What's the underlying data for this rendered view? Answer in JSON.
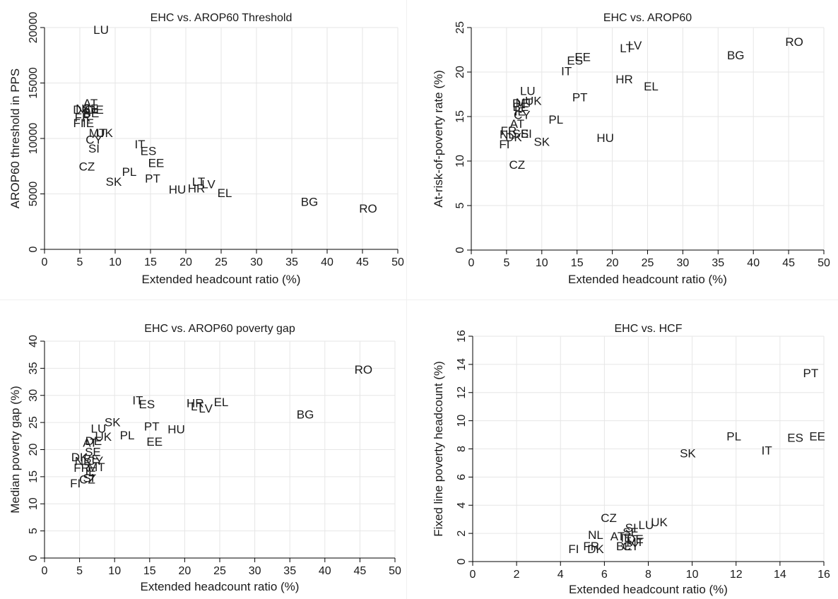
{
  "chart_data": [
    {
      "type": "scatter",
      "title": "EHC vs. AROP60 Threshold",
      "xlabel": "Extended headcount ratio (%)",
      "ylabel": "AROP60 threshold in PPS",
      "xlim": [
        0,
        50
      ],
      "ylim": [
        0,
        20000
      ],
      "xticks": [
        0,
        5,
        10,
        15,
        20,
        25,
        30,
        35,
        40,
        45,
        50
      ],
      "yticks": [
        0,
        5000,
        10000,
        15000,
        20000
      ],
      "grid": true,
      "points": [
        {
          "label": "LU",
          "x": 8,
          "y": 19800
        },
        {
          "label": "AT",
          "x": 6.5,
          "y": 13200
        },
        {
          "label": "NL",
          "x": 5.5,
          "y": 12700
        },
        {
          "label": "DK",
          "x": 5.2,
          "y": 12600
        },
        {
          "label": "SE",
          "x": 6.5,
          "y": 12700
        },
        {
          "label": "DE",
          "x": 7.2,
          "y": 12600
        },
        {
          "label": "BE",
          "x": 6.6,
          "y": 12300
        },
        {
          "label": "FR",
          "x": 5.4,
          "y": 11900
        },
        {
          "label": "FI",
          "x": 4.8,
          "y": 11400
        },
        {
          "label": "IE",
          "x": 6.2,
          "y": 11400
        },
        {
          "label": "MT",
          "x": 7.5,
          "y": 10500
        },
        {
          "label": "UK",
          "x": 8.5,
          "y": 10500
        },
        {
          "label": "CY",
          "x": 7.0,
          "y": 9900
        },
        {
          "label": "SI",
          "x": 7.0,
          "y": 9100
        },
        {
          "label": "CZ",
          "x": 6.0,
          "y": 7500
        },
        {
          "label": "SK",
          "x": 9.8,
          "y": 6100
        },
        {
          "label": "PL",
          "x": 12.0,
          "y": 7000
        },
        {
          "label": "IT",
          "x": 13.5,
          "y": 9500
        },
        {
          "label": "ES",
          "x": 14.7,
          "y": 8900
        },
        {
          "label": "EE",
          "x": 15.8,
          "y": 7800
        },
        {
          "label": "PT",
          "x": 15.3,
          "y": 6400
        },
        {
          "label": "HU",
          "x": 18.8,
          "y": 5400
        },
        {
          "label": "HR",
          "x": 21.5,
          "y": 5500
        },
        {
          "label": "LT",
          "x": 21.8,
          "y": 6100
        },
        {
          "label": "LV",
          "x": 23.2,
          "y": 5900
        },
        {
          "label": "EL",
          "x": 25.5,
          "y": 5100
        },
        {
          "label": "BG",
          "x": 37.5,
          "y": 4300
        },
        {
          "label": "RO",
          "x": 45.8,
          "y": 3700
        }
      ]
    },
    {
      "type": "scatter",
      "title": "EHC vs. AROP60",
      "xlabel": "Extended headcount ratio (%)",
      "ylabel": "At-risk-of-poverty rate (%)",
      "xlim": [
        0,
        50
      ],
      "ylim": [
        0,
        25
      ],
      "xticks": [
        0,
        5,
        10,
        15,
        20,
        25,
        30,
        35,
        40,
        45,
        50
      ],
      "yticks": [
        0,
        5,
        10,
        15,
        20,
        25
      ],
      "grid": true,
      "points": [
        {
          "label": "LU",
          "x": 8.0,
          "y": 17.9
        },
        {
          "label": "UK",
          "x": 8.8,
          "y": 16.8
        },
        {
          "label": "MT",
          "x": 7.5,
          "y": 16.6
        },
        {
          "label": "DE",
          "x": 7.0,
          "y": 16.5
        },
        {
          "label": "BE",
          "x": 7.0,
          "y": 16.1
        },
        {
          "label": "IE",
          "x": 6.9,
          "y": 15.6
        },
        {
          "label": "CY",
          "x": 7.2,
          "y": 15.2
        },
        {
          "label": "AT",
          "x": 6.5,
          "y": 14.2
        },
        {
          "label": "FR",
          "x": 5.3,
          "y": 13.4
        },
        {
          "label": "NL",
          "x": 5.1,
          "y": 13.0
        },
        {
          "label": "SE",
          "x": 7.0,
          "y": 13.1
        },
        {
          "label": "SI",
          "x": 7.8,
          "y": 13.1
        },
        {
          "label": "DK",
          "x": 6.0,
          "y": 12.7
        },
        {
          "label": "FI",
          "x": 4.7,
          "y": 11.9
        },
        {
          "label": "CZ",
          "x": 6.5,
          "y": 9.6
        },
        {
          "label": "SK",
          "x": 10.0,
          "y": 12.2
        },
        {
          "label": "PL",
          "x": 12.0,
          "y": 14.7
        },
        {
          "label": "PT",
          "x": 15.4,
          "y": 17.2
        },
        {
          "label": "IT",
          "x": 13.5,
          "y": 20.1
        },
        {
          "label": "ES",
          "x": 14.7,
          "y": 21.3
        },
        {
          "label": "EE",
          "x": 15.8,
          "y": 21.7
        },
        {
          "label": "HU",
          "x": 19.0,
          "y": 12.6
        },
        {
          "label": "HR",
          "x": 21.7,
          "y": 19.2
        },
        {
          "label": "EL",
          "x": 25.5,
          "y": 18.4
        },
        {
          "label": "LT",
          "x": 22.0,
          "y": 22.7
        },
        {
          "label": "LV",
          "x": 23.2,
          "y": 23.0
        },
        {
          "label": "BG",
          "x": 37.5,
          "y": 21.9
        },
        {
          "label": "RO",
          "x": 45.8,
          "y": 23.4
        }
      ]
    },
    {
      "type": "scatter",
      "title": "EHC vs. AROP60 poverty gap",
      "xlabel": "Extended headcount ratio (%)",
      "ylabel": "Median poverty gap (%)",
      "xlim": [
        0,
        50
      ],
      "ylim": [
        0,
        40
      ],
      "xticks": [
        0,
        5,
        10,
        15,
        20,
        25,
        30,
        35,
        40,
        45,
        50
      ],
      "yticks": [
        0,
        5,
        10,
        15,
        20,
        25,
        30,
        35,
        40
      ],
      "grid": true,
      "points": [
        {
          "label": "RO",
          "x": 45.5,
          "y": 34.8
        },
        {
          "label": "BG",
          "x": 37.2,
          "y": 26.5
        },
        {
          "label": "IT",
          "x": 13.3,
          "y": 29.1
        },
        {
          "label": "ES",
          "x": 14.6,
          "y": 28.4
        },
        {
          "label": "HR",
          "x": 21.5,
          "y": 28.6
        },
        {
          "label": "EL",
          "x": 25.2,
          "y": 28.8
        },
        {
          "label": "LT",
          "x": 21.8,
          "y": 28.0
        },
        {
          "label": "LV",
          "x": 23.0,
          "y": 27.6
        },
        {
          "label": "PT",
          "x": 15.3,
          "y": 24.3
        },
        {
          "label": "HU",
          "x": 18.8,
          "y": 23.8
        },
        {
          "label": "EE",
          "x": 15.7,
          "y": 21.5
        },
        {
          "label": "SK",
          "x": 9.7,
          "y": 25.1
        },
        {
          "label": "LU",
          "x": 7.7,
          "y": 23.9
        },
        {
          "label": "UK",
          "x": 8.4,
          "y": 22.4
        },
        {
          "label": "PL",
          "x": 11.8,
          "y": 22.7
        },
        {
          "label": "AT",
          "x": 6.5,
          "y": 21.3
        },
        {
          "label": "DE",
          "x": 7.0,
          "y": 21.6
        },
        {
          "label": "SE",
          "x": 6.9,
          "y": 19.6
        },
        {
          "label": "DK",
          "x": 5.0,
          "y": 18.6
        },
        {
          "label": "NL",
          "x": 5.4,
          "y": 17.9
        },
        {
          "label": "BE",
          "x": 6.7,
          "y": 18.3
        },
        {
          "label": "CY",
          "x": 7.2,
          "y": 18.0
        },
        {
          "label": "FR",
          "x": 5.3,
          "y": 16.7
        },
        {
          "label": "MT",
          "x": 7.4,
          "y": 16.8
        },
        {
          "label": "IE",
          "x": 6.6,
          "y": 16.0
        },
        {
          "label": "SI",
          "x": 6.3,
          "y": 14.8
        },
        {
          "label": "CZ",
          "x": 6.1,
          "y": 14.5
        },
        {
          "label": "FI",
          "x": 4.4,
          "y": 13.8
        }
      ]
    },
    {
      "type": "scatter",
      "title": "EHC vs. HCF",
      "xlabel": "Extended headcount ratio (%)",
      "ylabel": "Fixed line poverty headcount (%)",
      "xlim": [
        0,
        16
      ],
      "ylim": [
        0,
        16
      ],
      "xticks": [
        0,
        2,
        4,
        6,
        8,
        10,
        12,
        14,
        16
      ],
      "yticks": [
        0,
        2,
        4,
        6,
        8,
        10,
        12,
        14,
        16
      ],
      "grid": true,
      "points": [
        {
          "label": "PT",
          "x": 15.4,
          "y": 13.4
        },
        {
          "label": "PL",
          "x": 11.9,
          "y": 8.9
        },
        {
          "label": "ES",
          "x": 14.7,
          "y": 8.8
        },
        {
          "label": "EE",
          "x": 15.7,
          "y": 8.9
        },
        {
          "label": "IT",
          "x": 13.4,
          "y": 7.9
        },
        {
          "label": "SK",
          "x": 9.8,
          "y": 7.7
        },
        {
          "label": "CZ",
          "x": 6.2,
          "y": 3.1
        },
        {
          "label": "UK",
          "x": 8.5,
          "y": 2.8
        },
        {
          "label": "LU",
          "x": 7.9,
          "y": 2.6
        },
        {
          "label": "SI",
          "x": 7.2,
          "y": 2.4
        },
        {
          "label": "SE",
          "x": 7.2,
          "y": 2.1
        },
        {
          "label": "NL",
          "x": 5.6,
          "y": 1.9
        },
        {
          "label": "AT",
          "x": 6.6,
          "y": 1.8
        },
        {
          "label": "IE",
          "x": 7.0,
          "y": 1.7
        },
        {
          "label": "DE",
          "x": 7.4,
          "y": 1.6
        },
        {
          "label": "MT",
          "x": 7.4,
          "y": 1.4
        },
        {
          "label": "BE",
          "x": 6.9,
          "y": 1.1
        },
        {
          "label": "CY",
          "x": 7.2,
          "y": 1.1
        },
        {
          "label": "FR",
          "x": 5.4,
          "y": 1.1
        },
        {
          "label": "DK",
          "x": 5.6,
          "y": 0.9
        },
        {
          "label": "FI",
          "x": 4.6,
          "y": 0.9
        }
      ]
    }
  ]
}
